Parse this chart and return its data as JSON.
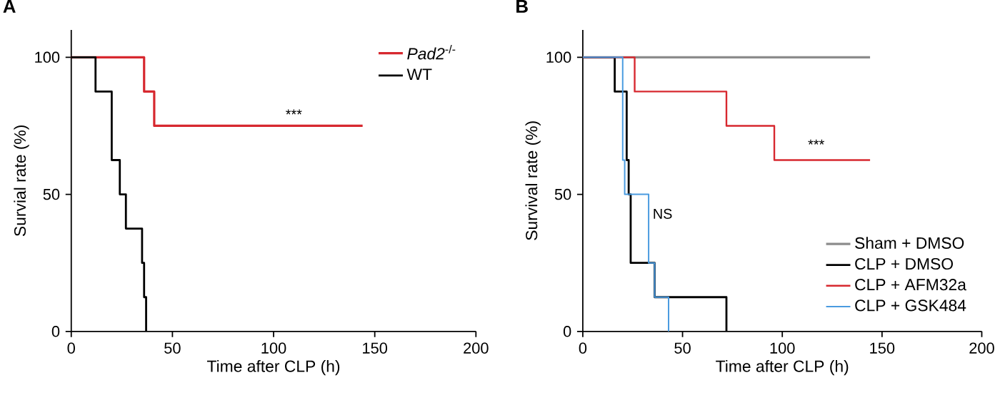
{
  "chart_data": [
    {
      "type": "step",
      "title": "A",
      "xlabel": "Time after CLP (h)",
      "ylabel": "Survial rate (%)",
      "xlim": [
        0,
        200
      ],
      "ylim": [
        0,
        110
      ],
      "xticks": [
        0,
        50,
        100,
        150,
        200
      ],
      "yticks": [
        0,
        50,
        100
      ],
      "legend": "top right",
      "series": [
        {
          "name": "*Pad2*$^{-/-}$",
          "color": "#d7282f",
          "x": [
            0,
            36,
            41,
            144
          ],
          "values": [
            100,
            87.5,
            75,
            75
          ]
        },
        {
          "name": "WT",
          "color": "#000000",
          "x": [
            0,
            12,
            20,
            24,
            27,
            35,
            36,
            37
          ],
          "values": [
            100,
            87.5,
            62.5,
            50,
            37.5,
            25,
            12.5,
            0
          ]
        }
      ],
      "annotations": [
        "***"
      ]
    },
    {
      "type": "step",
      "title": "B",
      "xlabel": "Time after CLP (h)",
      "ylabel": "Survival rate (%)",
      "xlim": [
        0,
        200
      ],
      "ylim": [
        0,
        110
      ],
      "xticks": [
        0,
        50,
        100,
        150,
        200
      ],
      "yticks": [
        0,
        50,
        100
      ],
      "legend": "bottom right",
      "series": [
        {
          "name": "Sham + DMSO",
          "color": "#8c8c8c",
          "x": [
            0,
            144
          ],
          "values": [
            100,
            100
          ]
        },
        {
          "name": "CLP + DMSO",
          "color": "#000000",
          "x": [
            0,
            16,
            22,
            23,
            24,
            36,
            72
          ],
          "values": [
            100,
            87.5,
            62.5,
            50,
            25,
            12.5,
            0
          ]
        },
        {
          "name": "CLP + AFM32a",
          "color": "#d7282f",
          "x": [
            0,
            26,
            72,
            96,
            144
          ],
          "values": [
            100,
            87.5,
            75,
            62.5,
            62.5
          ]
        },
        {
          "name": "CLP + GSK484",
          "color": "#4a9be0",
          "x": [
            0,
            20,
            21,
            33,
            36,
            43
          ],
          "values": [
            100,
            62.5,
            50,
            25,
            12.5,
            0
          ]
        }
      ],
      "annotations": [
        "***",
        "NS"
      ]
    }
  ]
}
